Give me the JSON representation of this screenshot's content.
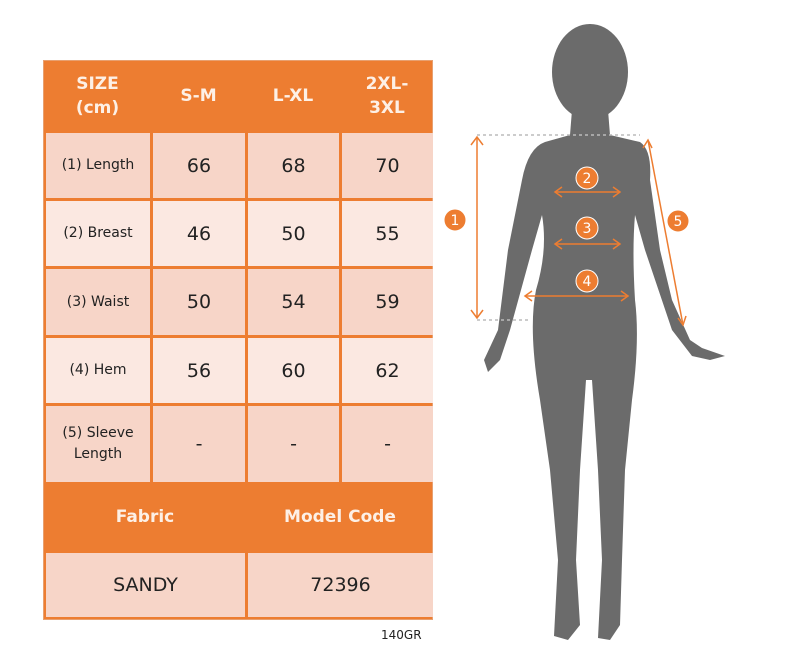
{
  "table": {
    "header": [
      "SIZE (cm)",
      "S-M",
      "L-XL",
      "2XL- 3XL"
    ],
    "header_lines": [
      [
        "SIZE",
        "(cm)"
      ],
      [
        "S-M"
      ],
      [
        "L-XL"
      ],
      [
        "2XL-",
        "3XL"
      ]
    ],
    "rows": [
      {
        "label": [
          "(1) Length"
        ],
        "values": [
          "66",
          "68",
          "70"
        ]
      },
      {
        "label": [
          "(2) Breast"
        ],
        "values": [
          "46",
          "50",
          "55"
        ]
      },
      {
        "label": [
          "(3) Waist"
        ],
        "values": [
          "50",
          "54",
          "59"
        ]
      },
      {
        "label": [
          "(4) Hem"
        ],
        "values": [
          "56",
          "60",
          "62"
        ]
      },
      {
        "label": [
          "(5) Sleeve",
          "Length"
        ],
        "values": [
          "-",
          "-",
          "-"
        ]
      }
    ],
    "footer_headers": [
      "Fabric",
      "Model Code"
    ],
    "footer_values": [
      "SANDY",
      "72396"
    ]
  },
  "note": "140GR",
  "figure": {
    "markers": [
      "1",
      "2",
      "3",
      "4",
      "5"
    ]
  },
  "colors": {
    "accent": "#ed7d31",
    "cell_dark": "#f7d5c8",
    "cell_light": "#fbe8e1",
    "silhouette": "#6b6b6b"
  }
}
